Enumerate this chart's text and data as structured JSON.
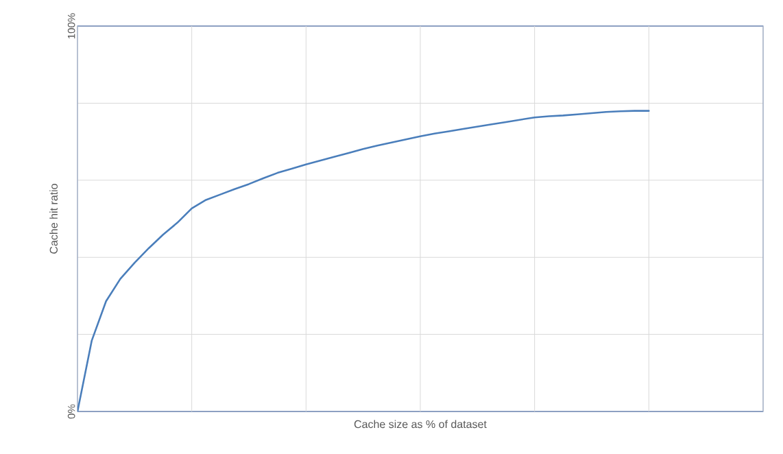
{
  "chart_data": {
    "type": "line",
    "xlabel": "Cache size as % of dataset",
    "ylabel": "Cache hit ratio",
    "categories": [
      null,
      null,
      null,
      null,
      null,
      null,
      null,
      null,
      null,
      null,
      null,
      null,
      null,
      null,
      null,
      null,
      null,
      null,
      null,
      null,
      null,
      null,
      null,
      null,
      null,
      null,
      null,
      null,
      null,
      null,
      null,
      null,
      null,
      null,
      null,
      null,
      null,
      null,
      null,
      null,
      null,
      null,
      null,
      null,
      null,
      null,
      null,
      null,
      null
    ],
    "ylim": [
      0,
      100
    ],
    "yticks": [
      {
        "value": 0,
        "label": "0%"
      },
      {
        "value": 20,
        "label": null
      },
      {
        "value": 40,
        "label": null
      },
      {
        "value": 60,
        "label": null
      },
      {
        "value": 80,
        "label": null
      },
      {
        "value": 100,
        "label": "100%"
      }
    ],
    "tick_labels": "y",
    "grid": true,
    "marker": "none",
    "line_style": "solid",
    "series": [
      {
        "color": "#4a7ebb",
        "values": [
          0,
          18.4,
          28.6,
          34.4,
          38.6,
          42.4,
          45.9,
          49.0,
          52.7,
          54.9,
          56.3,
          57.7,
          59.0,
          60.5,
          61.9,
          63.0,
          64.1,
          65.1,
          66.1,
          67.1,
          68.1,
          69.0,
          69.8,
          70.6,
          71.4,
          72.1,
          72.7,
          73.3,
          73.9,
          74.5,
          75.1,
          75.7,
          76.3,
          76.6,
          76.8,
          77.1,
          77.4,
          77.7,
          77.9,
          78.0,
          78.0,
          null,
          null,
          null,
          null,
          null,
          null,
          null,
          null
        ]
      }
    ]
  }
}
